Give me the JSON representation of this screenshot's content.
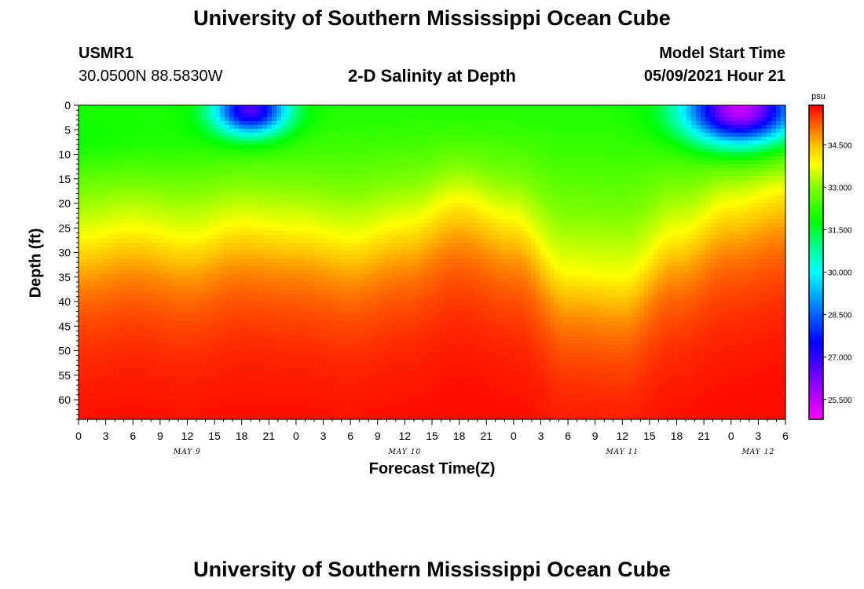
{
  "page": {
    "title_top": "University of Southern Mississippi Ocean Cube",
    "title_bottom": "University of Southern Mississippi Ocean Cube",
    "station_id": "USMR1",
    "station_coords": "30.0500N  88.5830W",
    "plot_title": "2-D Salinity at Depth",
    "model_start_label": "Model Start Time",
    "model_start_value": "05/09/2021 Hour 21"
  },
  "chart_data": {
    "type": "heatmap",
    "title": "2-D Salinity at Depth",
    "xlabel": "Forecast Time(Z)",
    "ylabel": "Depth (ft)",
    "colorbar_unit": "psu",
    "x_hours_range": [
      0,
      78
    ],
    "y_range": [
      0,
      64
    ],
    "y_inverted": true,
    "x_tick_labels": [
      "0",
      "3",
      "6",
      "9",
      "12",
      "15",
      "18",
      "21",
      "0",
      "3",
      "6",
      "9",
      "12",
      "15",
      "18",
      "21",
      "0",
      "3",
      "6",
      "9",
      "12",
      "15",
      "18",
      "21",
      "0",
      "3",
      "6"
    ],
    "y_ticks": [
      0,
      5,
      10,
      15,
      20,
      25,
      30,
      35,
      40,
      45,
      50,
      55,
      60
    ],
    "day_labels": [
      {
        "label": "MAY 9",
        "hour": 12
      },
      {
        "label": "MAY 10",
        "hour": 36
      },
      {
        "label": "MAY 11",
        "hour": 60
      },
      {
        "label": "MAY 12",
        "hour": 75
      }
    ],
    "colorbar_ticks": [
      "34.500",
      "33.000",
      "31.500",
      "30.000",
      "28.500",
      "27.000",
      "25.500"
    ],
    "colorbar_range": [
      24.8,
      35.9
    ],
    "color_stops": [
      {
        "value": 24.8,
        "color": "#ff00ff"
      },
      {
        "value": 26.2,
        "color": "#8000ff"
      },
      {
        "value": 27.5,
        "color": "#0000ff"
      },
      {
        "value": 28.8,
        "color": "#0080ff"
      },
      {
        "value": 30.0,
        "color": "#00ffff"
      },
      {
        "value": 31.0,
        "color": "#00ff80"
      },
      {
        "value": 31.8,
        "color": "#00ff00"
      },
      {
        "value": 33.0,
        "color": "#80ff00"
      },
      {
        "value": 33.8,
        "color": "#ffff00"
      },
      {
        "value": 34.5,
        "color": "#ffc000"
      },
      {
        "value": 35.2,
        "color": "#ff6000"
      },
      {
        "value": 35.9,
        "color": "#ff0000"
      }
    ],
    "isohaline_depth_ft": {
      "hours": [
        0,
        6,
        12,
        18,
        24,
        30,
        36,
        42,
        48,
        54,
        60,
        66,
        72,
        78
      ],
      "depth_33_8": [
        27,
        25,
        27,
        24,
        25,
        27,
        24,
        19,
        23,
        34,
        35,
        26,
        20,
        17
      ]
    },
    "low_salinity_cells": [
      {
        "hour": 19,
        "depth_ft": 1,
        "min_psu": 27.8,
        "extent_hours": 4,
        "extent_ft": 5
      },
      {
        "hour": 73,
        "depth_ft": 1,
        "min_psu": 26.5,
        "extent_hours": 6,
        "extent_ft": 7
      }
    ],
    "colors": {
      "frame": "#000000"
    }
  }
}
